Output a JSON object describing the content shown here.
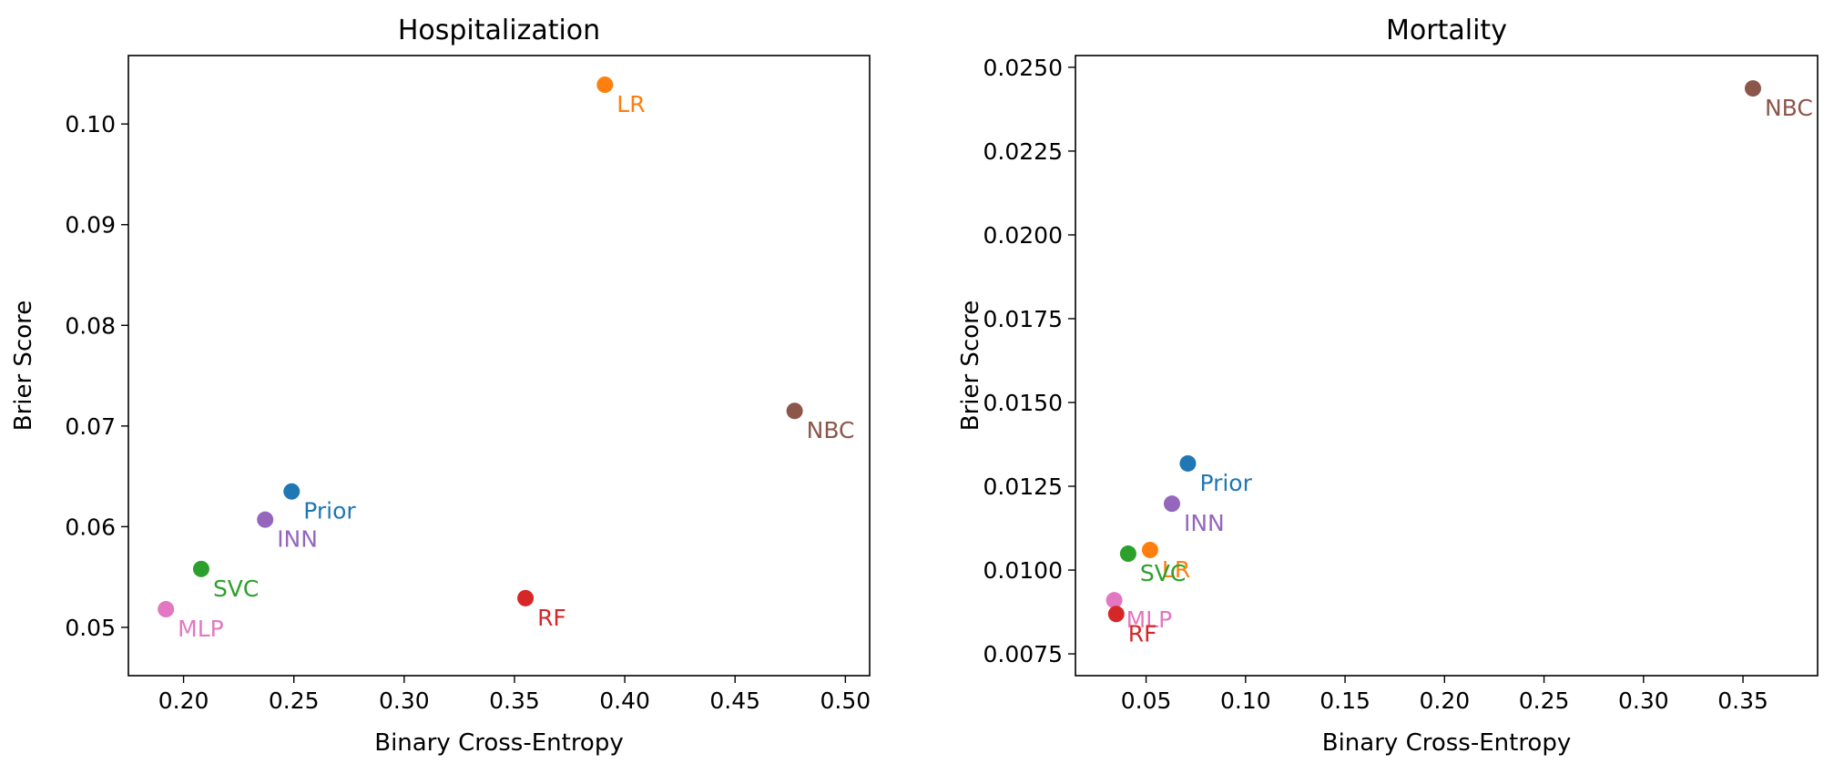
{
  "chart_data": [
    {
      "type": "scatter",
      "title": "Hospitalization",
      "xlabel": "Binary Cross-Entropy",
      "ylabel": "Brier Score",
      "xlim": [
        0.175,
        0.511
      ],
      "ylim": [
        0.0452,
        0.1068
      ],
      "xticks": [
        0.2,
        0.25,
        0.3,
        0.35,
        0.4,
        0.45,
        0.5
      ],
      "xtick_labels": [
        "0.20",
        "0.25",
        "0.30",
        "0.35",
        "0.40",
        "0.45",
        "0.50"
      ],
      "yticks": [
        0.05,
        0.06,
        0.07,
        0.08,
        0.09,
        0.1
      ],
      "ytick_labels": [
        "0.05",
        "0.06",
        "0.07",
        "0.08",
        "0.09",
        "0.10"
      ],
      "grid": false,
      "points": [
        {
          "label": "LR",
          "x": 0.391,
          "y": 0.1039,
          "color": "#ff7f0e"
        },
        {
          "label": "NBC",
          "x": 0.477,
          "y": 0.0715,
          "color": "#8c564b"
        },
        {
          "label": "Prior",
          "x": 0.249,
          "y": 0.0635,
          "color": "#1f77b4"
        },
        {
          "label": "INN",
          "x": 0.237,
          "y": 0.0607,
          "color": "#9467bd"
        },
        {
          "label": "SVC",
          "x": 0.208,
          "y": 0.0558,
          "color": "#2ca02c"
        },
        {
          "label": "RF",
          "x": 0.355,
          "y": 0.0529,
          "color": "#d62728"
        },
        {
          "label": "MLP",
          "x": 0.192,
          "y": 0.0518,
          "color": "#e377c2"
        }
      ]
    },
    {
      "type": "scatter",
      "title": "Mortality",
      "xlabel": "Binary Cross-Entropy",
      "ylabel": "Brier Score",
      "xlim": [
        0.0145,
        0.3875
      ],
      "ylim": [
        0.00685,
        0.02535
      ],
      "xticks": [
        0.05,
        0.1,
        0.15,
        0.2,
        0.25,
        0.3,
        0.35
      ],
      "xtick_labels": [
        "0.05",
        "0.10",
        "0.15",
        "0.20",
        "0.25",
        "0.30",
        "0.35"
      ],
      "yticks": [
        0.0075,
        0.01,
        0.0125,
        0.015,
        0.0175,
        0.02,
        0.0225,
        0.025
      ],
      "ytick_labels": [
        "0.0075",
        "0.0100",
        "0.0125",
        "0.0150",
        "0.0175",
        "0.0200",
        "0.0225",
        "0.0250"
      ],
      "grid": false,
      "points": [
        {
          "label": "NBC",
          "x": 0.355,
          "y": 0.02437,
          "color": "#8c564b"
        },
        {
          "label": "Prior",
          "x": 0.071,
          "y": 0.01318,
          "color": "#1f77b4"
        },
        {
          "label": "INN",
          "x": 0.063,
          "y": 0.01198,
          "color": "#9467bd"
        },
        {
          "label": "LR",
          "x": 0.052,
          "y": 0.0106,
          "color": "#ff7f0e"
        },
        {
          "label": "SVC",
          "x": 0.041,
          "y": 0.01049,
          "color": "#2ca02c"
        },
        {
          "label": "MLP",
          "x": 0.034,
          "y": 0.0091,
          "color": "#e377c2"
        },
        {
          "label": "RF",
          "x": 0.035,
          "y": 0.00869,
          "color": "#d62728"
        }
      ]
    }
  ]
}
